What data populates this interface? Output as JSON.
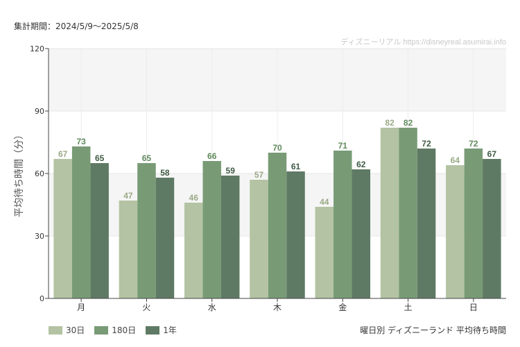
{
  "header": {
    "period_label": "集計期間：2024/5/9〜2025/5/8"
  },
  "watermark": "ディズニーリアル https://disneyreal.asumirai.info",
  "caption": "曜日別 ディズニーランド 平均待ち時間",
  "chart_data": {
    "type": "bar",
    "title": "",
    "ylabel": "平均待ち時間（分）",
    "xlabel": "",
    "ylim": [
      0,
      120
    ],
    "yticks": [
      0,
      30,
      60,
      90,
      120
    ],
    "grid": true,
    "legend_position": "bottom-left",
    "categories": [
      "月",
      "火",
      "水",
      "木",
      "金",
      "土",
      "日"
    ],
    "series": [
      {
        "name": "30日",
        "color": "#b3c3a3",
        "label_color": "#9aaa86",
        "values": [
          67,
          47,
          46,
          57,
          44,
          82,
          64
        ]
      },
      {
        "name": "180日",
        "color": "#789b76",
        "label_color": "#5f8a5c",
        "values": [
          73,
          65,
          66,
          70,
          71,
          82,
          72
        ]
      },
      {
        "name": "1年",
        "color": "#5f7a64",
        "label_color": "#3f5a44",
        "values": [
          65,
          58,
          59,
          61,
          62,
          72,
          67
        ]
      }
    ]
  }
}
